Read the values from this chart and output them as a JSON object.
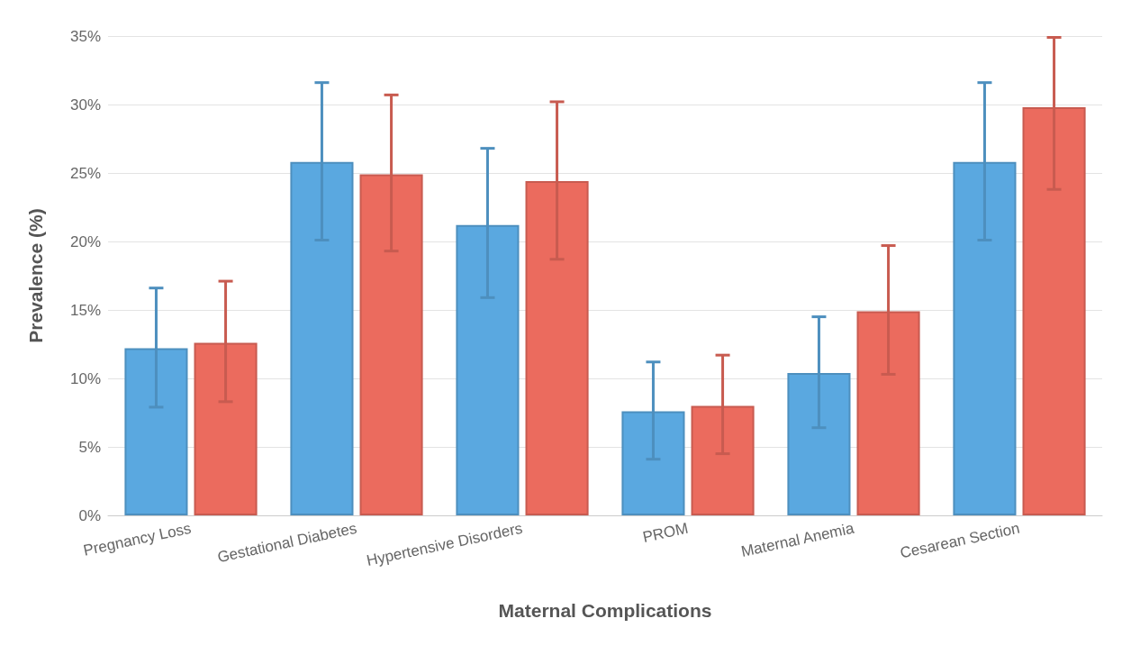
{
  "chart_data": {
    "type": "bar",
    "xlabel": "Maternal Complications",
    "ylabel": "Prevalence (%)",
    "categories": [
      "Pregnancy Loss",
      "Gestational Diabetes",
      "Hypertensive Disorders",
      "PROM",
      "Maternal Anemia",
      "Cesarean Section"
    ],
    "series": [
      {
        "color": "#5aa8e0",
        "values": [
          12.2,
          25.8,
          21.2,
          7.6,
          10.4,
          25.8
        ],
        "errors": [
          [
            7.9,
            16.6
          ],
          [
            20.1,
            31.6
          ],
          [
            15.9,
            26.8
          ],
          [
            4.1,
            11.2
          ],
          [
            6.4,
            14.5
          ],
          [
            20.1,
            31.6
          ]
        ]
      },
      {
        "color": "#eb6b5e",
        "values": [
          12.6,
          24.9,
          24.4,
          8.0,
          14.9,
          29.8
        ],
        "errors": [
          [
            8.3,
            17.1
          ],
          [
            19.3,
            30.7
          ],
          [
            18.7,
            30.2
          ],
          [
            4.5,
            11.7
          ],
          [
            10.3,
            19.7
          ],
          [
            23.8,
            34.9
          ]
        ]
      }
    ],
    "ylim": [
      0,
      35
    ],
    "yticks": [
      {
        "value": 0,
        "label": "0%"
      },
      {
        "value": 5,
        "label": "5%"
      },
      {
        "value": 10,
        "label": "10%"
      },
      {
        "value": 15,
        "label": "15%"
      },
      {
        "value": 20,
        "label": "20%"
      },
      {
        "value": 25,
        "label": "25%"
      },
      {
        "value": 30,
        "label": "30%"
      },
      {
        "value": 35,
        "label": "35%"
      }
    ],
    "grid": "y"
  }
}
